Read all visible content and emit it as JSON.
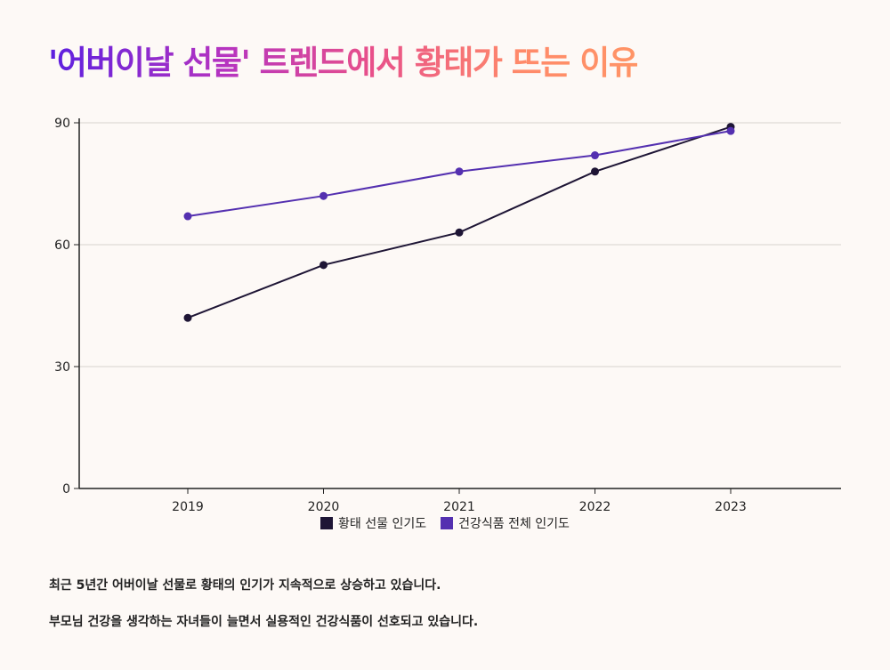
{
  "title": "'어버이날 선물' 트렌드에서 황태가 뜨는 이유",
  "chart_data": {
    "type": "line",
    "x": [
      "2019",
      "2020",
      "2021",
      "2022",
      "2023"
    ],
    "series": [
      {
        "name": "황태 선물 인기도",
        "color": "#1e1535",
        "values": [
          42,
          55,
          63,
          78,
          89
        ]
      },
      {
        "name": "건강식품 전체 인기도",
        "color": "#5430b0",
        "values": [
          67,
          72,
          78,
          82,
          88
        ]
      }
    ],
    "yticks": [
      "0",
      "30",
      "60",
      "90"
    ],
    "ylim": [
      0,
      90
    ],
    "grid": "horizontal",
    "legend": "bottom"
  },
  "notes": [
    "최근 5년간 어버이날 선물로 황태의 인기가 지속적으로 상승하고 있습니다.",
    "부모님 건강을 생각하는 자녀들이 늘면서 실용적인 건강식품이 선호되고 있습니다."
  ]
}
